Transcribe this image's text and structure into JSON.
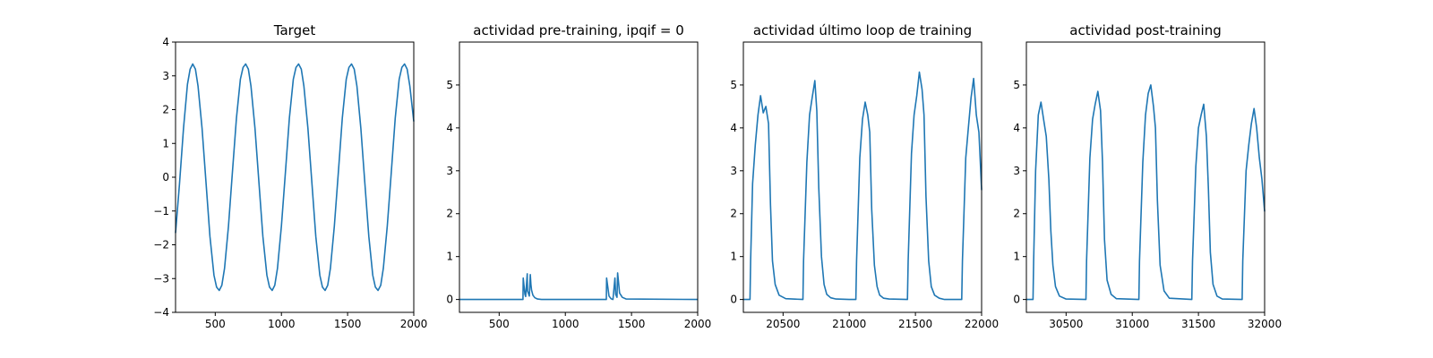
{
  "chart_data": [
    {
      "type": "line",
      "title": "Target",
      "xlim": [
        200,
        2000
      ],
      "ylim": [
        -4,
        4
      ],
      "xticks": [
        500,
        1000,
        1500,
        2000
      ],
      "yticks": [
        -4,
        -3,
        -2,
        -1,
        0,
        1,
        2,
        3,
        4
      ],
      "series": [
        {
          "color": "#1f77b4",
          "x": [
            200,
            230,
            260,
            290,
            310,
            330,
            350,
            370,
            400,
            430,
            460,
            490,
            510,
            530,
            550,
            570,
            600,
            630,
            660,
            690,
            710,
            730,
            750,
            770,
            800,
            830,
            860,
            890,
            910,
            930,
            950,
            970,
            1000,
            1030,
            1060,
            1090,
            1110,
            1130,
            1150,
            1170,
            1200,
            1230,
            1260,
            1290,
            1310,
            1330,
            1350,
            1370,
            1400,
            1430,
            1460,
            1490,
            1510,
            1530,
            1550,
            1570,
            1600,
            1630,
            1660,
            1690,
            1710,
            1730,
            1750,
            1770,
            1800,
            1830,
            1860,
            1890,
            1910,
            1930,
            1950,
            1970,
            2000
          ],
          "y": [
            -1.65,
            -0.2,
            1.45,
            2.75,
            3.2,
            3.35,
            3.2,
            2.7,
            1.45,
            -0.15,
            -1.75,
            -2.9,
            -3.25,
            -3.35,
            -3.2,
            -2.7,
            -1.45,
            0.15,
            1.75,
            2.9,
            3.25,
            3.35,
            3.2,
            2.7,
            1.45,
            -0.15,
            -1.75,
            -2.9,
            -3.25,
            -3.35,
            -3.2,
            -2.7,
            -1.45,
            0.15,
            1.75,
            2.9,
            3.25,
            3.35,
            3.2,
            2.7,
            1.45,
            -0.15,
            -1.75,
            -2.9,
            -3.25,
            -3.35,
            -3.2,
            -2.7,
            -1.45,
            0.15,
            1.75,
            2.9,
            3.25,
            3.35,
            3.2,
            2.7,
            1.45,
            -0.15,
            -1.75,
            -2.9,
            -3.25,
            -3.35,
            -3.2,
            -2.7,
            -1.45,
            0.15,
            1.75,
            2.9,
            3.25,
            3.35,
            3.2,
            2.7,
            1.65
          ]
        }
      ]
    },
    {
      "type": "line",
      "title": "actividad pre-training, ipqif = 0",
      "xlim": [
        200,
        2000
      ],
      "ylim": [
        -0.3,
        6
      ],
      "xticks": [
        500,
        1000,
        1500,
        2000
      ],
      "yticks": [
        0,
        1,
        2,
        3,
        4,
        5
      ],
      "series": [
        {
          "color": "#1f77b4",
          "x": [
            200,
            680,
            682,
            695,
            700,
            712,
            714,
            728,
            735,
            740,
            745,
            755,
            770,
            790,
            820,
            1300,
            1310,
            1312,
            1330,
            1345,
            1360,
            1375,
            1380,
            1390,
            1395,
            1410,
            1430,
            1460,
            2000
          ],
          "y": [
            0,
            0,
            0.5,
            0.12,
            0.07,
            0.6,
            0.2,
            0.08,
            0.58,
            0.35,
            0.22,
            0.1,
            0.04,
            0.01,
            0,
            0,
            0,
            0.5,
            0.08,
            0.02,
            0,
            0.5,
            0.12,
            0.05,
            0.62,
            0.15,
            0.05,
            0.01,
            0
          ]
        }
      ]
    },
    {
      "type": "line",
      "title": "actividad último loop de training",
      "xlim": [
        20200,
        22000
      ],
      "ylim": [
        -0.3,
        6
      ],
      "xticks": [
        20500,
        21000,
        21500,
        22000
      ],
      "yticks": [
        0,
        1,
        2,
        3,
        4,
        5
      ],
      "series": [
        {
          "color": "#1f77b4",
          "x": [
            20200,
            20250,
            20255,
            20270,
            20290,
            20310,
            20330,
            20350,
            20370,
            20390,
            20405,
            20420,
            20440,
            20470,
            20520,
            20650,
            20655,
            20680,
            20700,
            20720,
            20740,
            20755,
            20770,
            20790,
            20810,
            20830,
            20860,
            20900,
            21000,
            21050,
            21055,
            21080,
            21100,
            21120,
            21140,
            21155,
            21170,
            21190,
            21210,
            21230,
            21260,
            21300,
            21440,
            21445,
            21470,
            21490,
            21510,
            21530,
            21550,
            21565,
            21580,
            21600,
            21620,
            21645,
            21680,
            21720,
            21850,
            21855,
            21880,
            21900,
            21920,
            21940,
            21960,
            21980,
            22000
          ],
          "y": [
            0,
            0,
            0.9,
            2.7,
            3.6,
            4.3,
            4.75,
            4.35,
            4.5,
            4.1,
            2.2,
            0.9,
            0.35,
            0.1,
            0.02,
            0,
            0.9,
            3.2,
            4.3,
            4.7,
            5.1,
            4.4,
            2.6,
            1.0,
            0.35,
            0.12,
            0.04,
            0.01,
            0,
            0,
            0.9,
            3.3,
            4.2,
            4.6,
            4.3,
            3.9,
            2.1,
            0.8,
            0.3,
            0.1,
            0.03,
            0.01,
            0,
            0.9,
            3.4,
            4.3,
            4.75,
            5.3,
            4.9,
            4.3,
            2.4,
            0.9,
            0.3,
            0.1,
            0.03,
            0,
            0,
            0.9,
            3.3,
            4.0,
            4.7,
            5.15,
            4.3,
            3.9,
            2.55
          ]
        }
      ]
    },
    {
      "type": "line",
      "title": "actividad post-training",
      "xlim": [
        30200,
        32000
      ],
      "ylim": [
        -0.3,
        6
      ],
      "xticks": [
        30500,
        31000,
        31500,
        32000
      ],
      "yticks": [
        0,
        1,
        2,
        3,
        4,
        5
      ],
      "series": [
        {
          "color": "#1f77b4",
          "x": [
            30200,
            30250,
            30255,
            30270,
            30290,
            30310,
            30330,
            30350,
            30370,
            30385,
            30400,
            30420,
            30450,
            30500,
            30650,
            30655,
            30680,
            30700,
            30720,
            30740,
            30760,
            30775,
            30790,
            30810,
            30840,
            30880,
            31050,
            31055,
            31080,
            31100,
            31120,
            31140,
            31160,
            31175,
            31190,
            31210,
            31240,
            31280,
            31450,
            31455,
            31480,
            31500,
            31520,
            31540,
            31560,
            31575,
            31590,
            31610,
            31640,
            31680,
            31830,
            31835,
            31860,
            31880,
            31900,
            31920,
            31940,
            31960,
            31980,
            32000
          ],
          "y": [
            0,
            0,
            0.9,
            3.0,
            4.3,
            4.6,
            4.2,
            3.8,
            2.8,
            1.6,
            0.8,
            0.3,
            0.08,
            0.01,
            0,
            0.9,
            3.3,
            4.2,
            4.55,
            4.85,
            4.4,
            3.2,
            1.4,
            0.45,
            0.12,
            0.02,
            0,
            0.9,
            3.2,
            4.3,
            4.8,
            5.0,
            4.5,
            4.0,
            2.3,
            0.8,
            0.2,
            0.03,
            0,
            0.9,
            3.1,
            4.0,
            4.3,
            4.55,
            3.8,
            2.6,
            1.1,
            0.35,
            0.08,
            0.01,
            0,
            0.9,
            3.0,
            3.6,
            4.1,
            4.45,
            4.0,
            3.3,
            2.8,
            2.05
          ]
        }
      ]
    }
  ]
}
